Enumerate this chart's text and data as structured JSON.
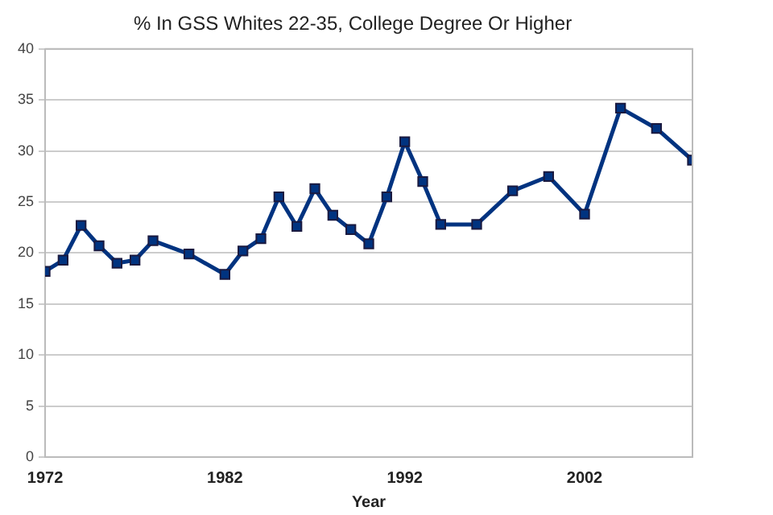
{
  "chart_data": {
    "type": "line",
    "title": "% In GSS Whites 22-35, College Degree Or Higher",
    "xlabel": "Year",
    "x": [
      1972,
      1973,
      1974,
      1975,
      1976,
      1977,
      1978,
      1980,
      1982,
      1983,
      1984,
      1985,
      1986,
      1987,
      1988,
      1989,
      1990,
      1991,
      1992,
      1993,
      1994,
      1996,
      1998,
      2000,
      2002,
      2004,
      2006,
      2008
    ],
    "series": [
      {
        "color": "#003380",
        "values": [
          18.2,
          19.3,
          22.7,
          20.7,
          19.0,
          19.3,
          21.2,
          19.9,
          17.9,
          20.2,
          21.4,
          25.5,
          22.6,
          26.3,
          23.7,
          22.3,
          20.9,
          25.5,
          30.9,
          27.0,
          22.8,
          22.8,
          26.1,
          27.5,
          23.8,
          34.2,
          32.2,
          29.1
        ]
      }
    ],
    "xlim": [
      1972,
      2008
    ],
    "xticks": [
      1972,
      1982,
      1992,
      2002
    ],
    "ylim": [
      0,
      40
    ],
    "yticks": [
      0,
      5,
      10,
      15,
      20,
      25,
      30,
      35,
      40
    ],
    "grid": "y",
    "legend": false,
    "marker": "square",
    "line_style": "solid"
  }
}
